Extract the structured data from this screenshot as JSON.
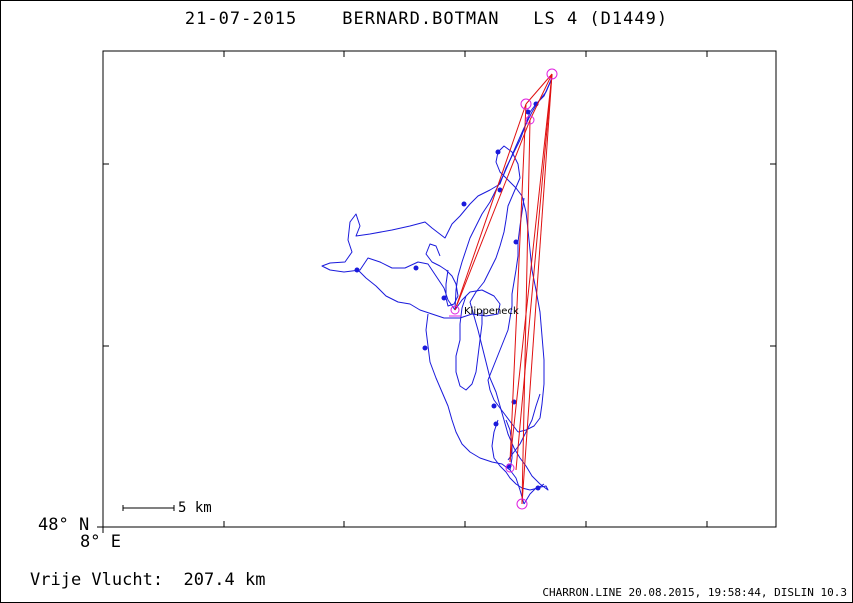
{
  "header": {
    "date": "21-07-2015",
    "pilot": "BERNARD.BOTMAN",
    "glider": "LS 4 (D1449)"
  },
  "axes": {
    "lat_label": "48° N",
    "lon_label": "8° E"
  },
  "scale_bar": {
    "label": "5 km"
  },
  "waypoint": {
    "label": "Klippeneck"
  },
  "summary": {
    "label": "Vrije Vlucht:",
    "distance": "207.4 km"
  },
  "credit": "CHARRON.LINE 20.08.2015, 19:58:44, DISLIN 10.3",
  "colors": {
    "track": "#1a1adc",
    "task": "#e01010",
    "turnpoint": "#e020e0",
    "axes": "#000000"
  }
}
